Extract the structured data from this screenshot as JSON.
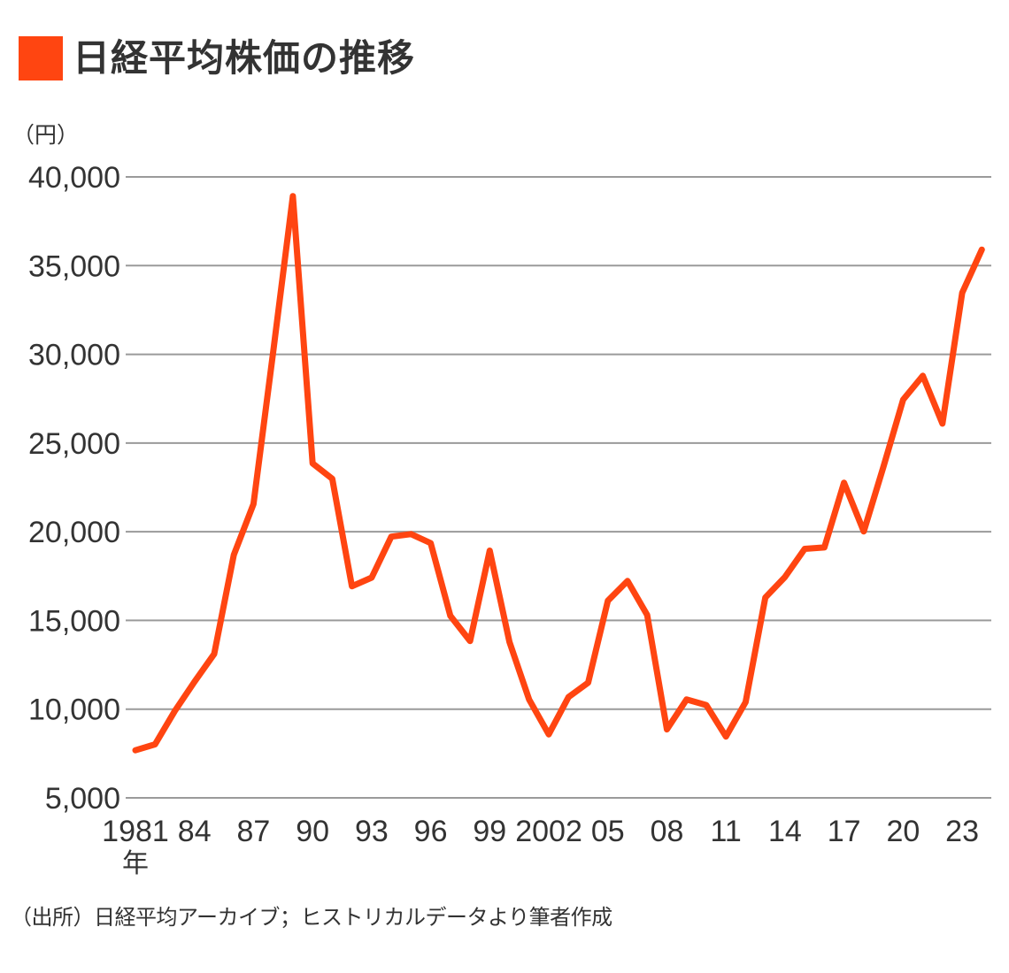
{
  "title": "日経平均株価の推移",
  "unit_label": "（円）",
  "source_note": "（出所）日経平均アーカイブ；ヒストリカルデータより筆者作成",
  "colors": {
    "accent": "#FF4511",
    "line": "#FF4511",
    "grid": "#9a9a9a",
    "text": "#333333"
  },
  "chart_data": {
    "type": "line",
    "title": "日経平均株価の推移",
    "xlabel": "年",
    "ylabel": "（円）",
    "ylim": [
      5000,
      40000
    ],
    "xlim": [
      1981,
      2024
    ],
    "grid": true,
    "y_ticks": [
      {
        "value": 40000,
        "label": "40,000"
      },
      {
        "value": 35000,
        "label": "35,000"
      },
      {
        "value": 30000,
        "label": "30,000"
      },
      {
        "value": 25000,
        "label": "25,000"
      },
      {
        "value": 20000,
        "label": "20,000"
      },
      {
        "value": 15000,
        "label": "15,000"
      },
      {
        "value": 10000,
        "label": "10,000"
      },
      {
        "value": 5000,
        "label": "5,000"
      }
    ],
    "x_ticks": [
      {
        "value": 1981,
        "label": "1981"
      },
      {
        "value": 1984,
        "label": "84"
      },
      {
        "value": 1987,
        "label": "87"
      },
      {
        "value": 1990,
        "label": "90"
      },
      {
        "value": 1993,
        "label": "93"
      },
      {
        "value": 1996,
        "label": "96"
      },
      {
        "value": 1999,
        "label": "99"
      },
      {
        "value": 2002,
        "label": "2002"
      },
      {
        "value": 2005,
        "label": "05"
      },
      {
        "value": 2008,
        "label": "08"
      },
      {
        "value": 2011,
        "label": "11"
      },
      {
        "value": 2014,
        "label": "14"
      },
      {
        "value": 2017,
        "label": "17"
      },
      {
        "value": 2020,
        "label": "20"
      },
      {
        "value": 2023,
        "label": "23"
      }
    ],
    "x_unit_label": "年",
    "series": [
      {
        "name": "日経平均株価",
        "x": [
          1981,
          1982,
          1983,
          1984,
          1985,
          1986,
          1987,
          1988,
          1989,
          1990,
          1991,
          1992,
          1993,
          1994,
          1995,
          1996,
          1997,
          1998,
          1999,
          2000,
          2001,
          2002,
          2003,
          2004,
          2005,
          2006,
          2007,
          2008,
          2009,
          2010,
          2011,
          2012,
          2013,
          2014,
          2015,
          2016,
          2017,
          2018,
          2019,
          2020,
          2021,
          2022,
          2023,
          2024
        ],
        "values": [
          7682,
          8017,
          9894,
          11543,
          13113,
          18701,
          21564,
          30159,
          38916,
          23849,
          22984,
          16925,
          17417,
          19723,
          19868,
          19361,
          15259,
          13842,
          18934,
          13786,
          10543,
          8579,
          10677,
          11489,
          16111,
          17226,
          15308,
          8860,
          10546,
          10229,
          8455,
          10395,
          16291,
          17451,
          19034,
          19114,
          22765,
          20015,
          23657,
          27444,
          28792,
          26095,
          33464,
          35900
        ]
      }
    ]
  }
}
